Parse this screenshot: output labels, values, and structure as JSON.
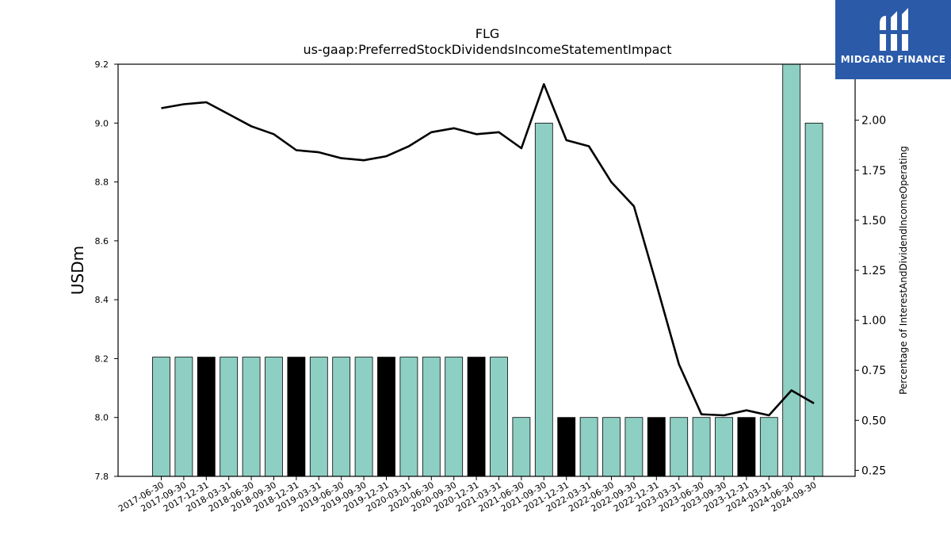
{
  "chart_data": {
    "type": "bar",
    "title": "FLG",
    "subtitle": "us-gaap:PreferredStockDividendsIncomeStatementImpact",
    "ylabel": "USDm",
    "y2label": "Percentage of InterestAndDividendIncomeOperating",
    "ylim": [
      7.8,
      9.2
    ],
    "y2lim": [
      0.22,
      2.28
    ],
    "yticks": [
      "7.8",
      "8.0",
      "8.2",
      "8.4",
      "8.6",
      "8.8",
      "9.0",
      "9.2"
    ],
    "y2ticks": [
      "0.25",
      "0.50",
      "0.75",
      "1.00",
      "1.25",
      "1.50",
      "1.75",
      "2.00"
    ],
    "categories": [
      "2017-06-30",
      "2017-09-30",
      "2017-12-31",
      "2018-03-31",
      "2018-06-30",
      "2018-09-30",
      "2018-12-31",
      "2019-03-31",
      "2019-06-30",
      "2019-09-30",
      "2019-12-31",
      "2020-03-31",
      "2020-06-30",
      "2020-09-30",
      "2020-12-31",
      "2021-03-31",
      "2021-06-30",
      "2021-09-30",
      "2021-12-31",
      "2022-03-31",
      "2022-06-30",
      "2022-09-30",
      "2022-12-31",
      "2023-03-31",
      "2023-06-30",
      "2023-09-30",
      "2023-12-31",
      "2024-03-31",
      "2024-06-30",
      "2024-09-30"
    ],
    "series": [
      {
        "type": "bar",
        "values": [
          8.205,
          8.205,
          8.205,
          8.205,
          8.205,
          8.205,
          8.205,
          8.205,
          8.205,
          8.205,
          8.205,
          8.205,
          8.205,
          8.205,
          8.205,
          8.205,
          8.0,
          9.0,
          8.0,
          8.0,
          8.0,
          8.0,
          8.0,
          8.0,
          8.0,
          8.0,
          8.0,
          8.0,
          9.2,
          9.0
        ],
        "highlight": [
          false,
          false,
          true,
          false,
          false,
          false,
          true,
          false,
          false,
          false,
          true,
          false,
          false,
          false,
          true,
          false,
          false,
          false,
          true,
          false,
          false,
          false,
          true,
          false,
          false,
          false,
          true,
          false,
          false,
          false
        ]
      },
      {
        "type": "line",
        "axis": "secondary",
        "values": [
          2.06,
          2.08,
          2.09,
          2.03,
          1.97,
          1.93,
          1.85,
          1.84,
          1.81,
          1.8,
          1.82,
          1.87,
          1.94,
          1.96,
          1.93,
          1.94,
          1.86,
          2.18,
          1.9,
          1.87,
          1.69,
          1.57,
          1.18,
          0.78,
          0.53,
          0.525,
          0.55,
          0.525,
          0.65,
          0.585
        ]
      }
    ],
    "colors": {
      "bar": "#8ecfc4",
      "bar_highlight": "#000000",
      "line": "#000000"
    },
    "grid": false,
    "legend": "none"
  },
  "logo": {
    "text": "MIDGARD FINANCE"
  }
}
